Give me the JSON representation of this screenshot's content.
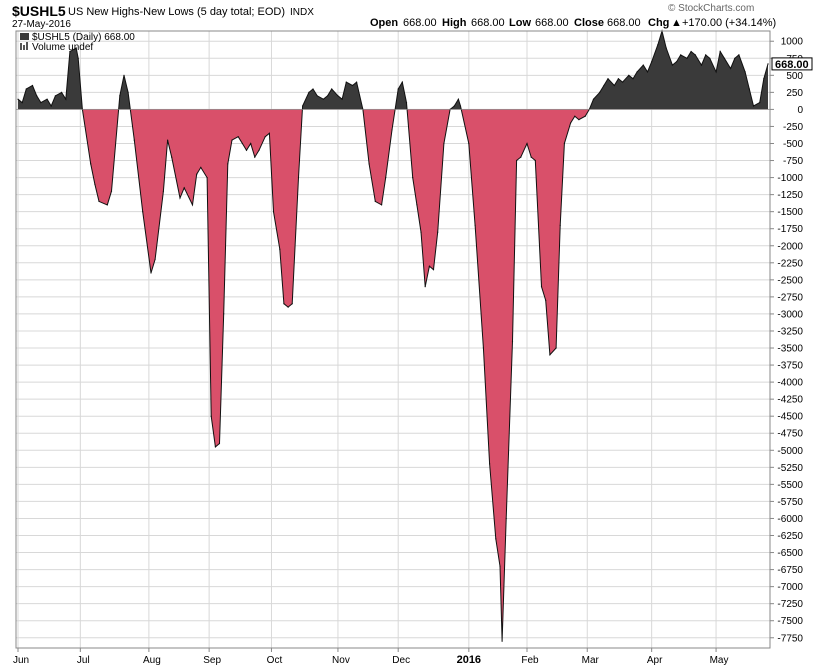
{
  "header": {
    "symbol": "$USHL5",
    "description": "US New Highs-New Lows (5 day total; EOD)",
    "exchange": "INDX",
    "date": "27-May-2016",
    "open_label": "Open",
    "open_value": "668.00",
    "high_label": "High",
    "high_value": "668.00",
    "low_label": "Low",
    "low_value": "668.00",
    "close_label": "Close",
    "close_value": "668.00",
    "chg_label": "Chg",
    "chg_value": "+170.00 (+34.14%)",
    "chg_arrow": "▲",
    "brand": "© StockCharts.com",
    "legend_series": "$USHL5 (Daily) 668.00",
    "legend_volume": "Volume undef",
    "last_value_label": "668.00"
  },
  "colors": {
    "positive": "#3a3a3a",
    "negative": "#d9506a",
    "line": "#111111",
    "grid": "#d8d8d8",
    "chg_up": "#0a8a0a"
  },
  "chart_data": {
    "type": "area",
    "title": "US New Highs-New Lows (5 day total; EOD)",
    "ylim": [
      -7900,
      1150
    ],
    "yticks": [
      1000,
      750,
      500,
      250,
      0,
      -250,
      -500,
      -750,
      -1000,
      -1250,
      -1500,
      -1750,
      -2000,
      -2250,
      -2500,
      -2750,
      -3000,
      -3250,
      -3500,
      -3750,
      -4000,
      -4250,
      -4500,
      -4750,
      -5000,
      -5250,
      -5500,
      -5750,
      -6000,
      -6250,
      -6500,
      -6750,
      -7000,
      -7250,
      -7500,
      -7750
    ],
    "grid": true,
    "x_start": "2015-06-01",
    "x_end": "2016-05-27",
    "x_ticks": [
      {
        "date": "2015-06-01",
        "label": "Jun",
        "bold": false
      },
      {
        "date": "2015-07-01",
        "label": "Jul",
        "bold": false
      },
      {
        "date": "2015-08-03",
        "label": "Aug",
        "bold": false
      },
      {
        "date": "2015-09-01",
        "label": "Sep",
        "bold": false
      },
      {
        "date": "2015-10-01",
        "label": "Oct",
        "bold": false
      },
      {
        "date": "2015-11-02",
        "label": "Nov",
        "bold": false
      },
      {
        "date": "2015-12-01",
        "label": "Dec",
        "bold": false
      },
      {
        "date": "2016-01-04",
        "label": "2016",
        "bold": true
      },
      {
        "date": "2016-02-01",
        "label": "Feb",
        "bold": false
      },
      {
        "date": "2016-03-01",
        "label": "Mar",
        "bold": false
      },
      {
        "date": "2016-04-01",
        "label": "Apr",
        "bold": false
      },
      {
        "date": "2016-05-02",
        "label": "May",
        "bold": false
      }
    ],
    "series": [
      {
        "points": [
          [
            "2015-06-01",
            150
          ],
          [
            "2015-06-03",
            100
          ],
          [
            "2015-06-05",
            300
          ],
          [
            "2015-06-08",
            350
          ],
          [
            "2015-06-10",
            200
          ],
          [
            "2015-06-12",
            100
          ],
          [
            "2015-06-15",
            150
          ],
          [
            "2015-06-17",
            50
          ],
          [
            "2015-06-19",
            200
          ],
          [
            "2015-06-22",
            250
          ],
          [
            "2015-06-24",
            150
          ],
          [
            "2015-06-26",
            850
          ],
          [
            "2015-06-29",
            900
          ],
          [
            "2015-06-30",
            750
          ],
          [
            "2015-07-02",
            0
          ],
          [
            "2015-07-06",
            -800
          ],
          [
            "2015-07-08",
            -1100
          ],
          [
            "2015-07-10",
            -1350
          ],
          [
            "2015-07-14",
            -1400
          ],
          [
            "2015-07-16",
            -1200
          ],
          [
            "2015-07-20",
            200
          ],
          [
            "2015-07-22",
            500
          ],
          [
            "2015-07-24",
            250
          ],
          [
            "2015-07-27",
            -450
          ],
          [
            "2015-07-31",
            -1500
          ],
          [
            "2015-08-04",
            -2400
          ],
          [
            "2015-08-06",
            -2200
          ],
          [
            "2015-08-10",
            -1200
          ],
          [
            "2015-08-12",
            -450
          ],
          [
            "2015-08-14",
            -700
          ],
          [
            "2015-08-18",
            -1300
          ],
          [
            "2015-08-20",
            -1150
          ],
          [
            "2015-08-24",
            -1400
          ],
          [
            "2015-08-26",
            -950
          ],
          [
            "2015-08-28",
            -850
          ],
          [
            "2015-08-31",
            -1000
          ],
          [
            "2015-09-02",
            -4500
          ],
          [
            "2015-09-04",
            -4950
          ],
          [
            "2015-09-06",
            -4900
          ],
          [
            "2015-09-08",
            -3000
          ],
          [
            "2015-09-10",
            -800
          ],
          [
            "2015-09-12",
            -450
          ],
          [
            "2015-09-15",
            -400
          ],
          [
            "2015-09-17",
            -500
          ],
          [
            "2015-09-19",
            -600
          ],
          [
            "2015-09-21",
            -500
          ],
          [
            "2015-09-23",
            -700
          ],
          [
            "2015-09-25",
            -600
          ],
          [
            "2015-09-28",
            -400
          ],
          [
            "2015-09-30",
            -350
          ],
          [
            "2015-10-02",
            -1500
          ],
          [
            "2015-10-05",
            -2050
          ],
          [
            "2015-10-07",
            -2850
          ],
          [
            "2015-10-09",
            -2900
          ],
          [
            "2015-10-11",
            -2850
          ],
          [
            "2015-10-14",
            -1000
          ],
          [
            "2015-10-16",
            50
          ],
          [
            "2015-10-19",
            250
          ],
          [
            "2015-10-21",
            300
          ],
          [
            "2015-10-23",
            200
          ],
          [
            "2015-10-26",
            150
          ],
          [
            "2015-10-28",
            200
          ],
          [
            "2015-10-30",
            300
          ],
          [
            "2015-11-02",
            200
          ],
          [
            "2015-11-04",
            150
          ],
          [
            "2015-11-06",
            400
          ],
          [
            "2015-11-09",
            350
          ],
          [
            "2015-11-11",
            400
          ],
          [
            "2015-11-14",
            0
          ],
          [
            "2015-11-17",
            -800
          ],
          [
            "2015-11-20",
            -1350
          ],
          [
            "2015-11-23",
            -1400
          ],
          [
            "2015-11-25",
            -1000
          ],
          [
            "2015-11-28",
            -300
          ],
          [
            "2015-12-01",
            300
          ],
          [
            "2015-12-03",
            400
          ],
          [
            "2015-12-05",
            100
          ],
          [
            "2015-12-08",
            -1000
          ],
          [
            "2015-12-10",
            -1400
          ],
          [
            "2015-12-12",
            -1800
          ],
          [
            "2015-12-14",
            -2600
          ],
          [
            "2015-12-16",
            -2300
          ],
          [
            "2015-12-18",
            -2350
          ],
          [
            "2015-12-20",
            -1800
          ],
          [
            "2015-12-23",
            -500
          ],
          [
            "2015-12-26",
            0
          ],
          [
            "2015-12-28",
            50
          ],
          [
            "2015-12-30",
            150
          ],
          [
            "2015-12-31",
            50
          ],
          [
            "2016-01-04",
            -500
          ],
          [
            "2016-01-07",
            -1700
          ],
          [
            "2016-01-11",
            -3500
          ],
          [
            "2016-01-14",
            -5200
          ],
          [
            "2016-01-17",
            -6300
          ],
          [
            "2016-01-19",
            -6700
          ],
          [
            "2016-01-20",
            -7800
          ],
          [
            "2016-01-22",
            -6000
          ],
          [
            "2016-01-25",
            -3400
          ],
          [
            "2016-01-27",
            -750
          ],
          [
            "2016-01-29",
            -700
          ],
          [
            "2016-02-01",
            -500
          ],
          [
            "2016-02-03",
            -700
          ],
          [
            "2016-02-05",
            -750
          ],
          [
            "2016-02-08",
            -2600
          ],
          [
            "2016-02-10",
            -2800
          ],
          [
            "2016-02-12",
            -3600
          ],
          [
            "2016-02-15",
            -3500
          ],
          [
            "2016-02-17",
            -1700
          ],
          [
            "2016-02-19",
            -500
          ],
          [
            "2016-02-22",
            -200
          ],
          [
            "2016-02-24",
            -100
          ],
          [
            "2016-02-26",
            -150
          ],
          [
            "2016-02-29",
            -100
          ],
          [
            "2016-03-02",
            0
          ],
          [
            "2016-03-04",
            150
          ],
          [
            "2016-03-07",
            250
          ],
          [
            "2016-03-09",
            350
          ],
          [
            "2016-03-11",
            450
          ],
          [
            "2016-03-14",
            350
          ],
          [
            "2016-03-16",
            450
          ],
          [
            "2016-03-18",
            400
          ],
          [
            "2016-03-21",
            500
          ],
          [
            "2016-03-23",
            450
          ],
          [
            "2016-03-25",
            550
          ],
          [
            "2016-03-28",
            650
          ],
          [
            "2016-03-30",
            550
          ],
          [
            "2016-04-01",
            700
          ],
          [
            "2016-04-04",
            950
          ],
          [
            "2016-04-06",
            1150
          ],
          [
            "2016-04-08",
            900
          ],
          [
            "2016-04-11",
            650
          ],
          [
            "2016-04-13",
            700
          ],
          [
            "2016-04-15",
            800
          ],
          [
            "2016-04-18",
            750
          ],
          [
            "2016-04-20",
            850
          ],
          [
            "2016-04-22",
            800
          ],
          [
            "2016-04-25",
            650
          ],
          [
            "2016-04-27",
            800
          ],
          [
            "2016-04-29",
            750
          ],
          [
            "2016-05-02",
            550
          ],
          [
            "2016-05-04",
            850
          ],
          [
            "2016-05-06",
            750
          ],
          [
            "2016-05-09",
            600
          ],
          [
            "2016-05-11",
            750
          ],
          [
            "2016-05-13",
            800
          ],
          [
            "2016-05-16",
            550
          ],
          [
            "2016-05-18",
            300
          ],
          [
            "2016-05-20",
            50
          ],
          [
            "2016-05-23",
            100
          ],
          [
            "2016-05-25",
            450
          ],
          [
            "2016-05-27",
            668
          ]
        ]
      }
    ]
  }
}
